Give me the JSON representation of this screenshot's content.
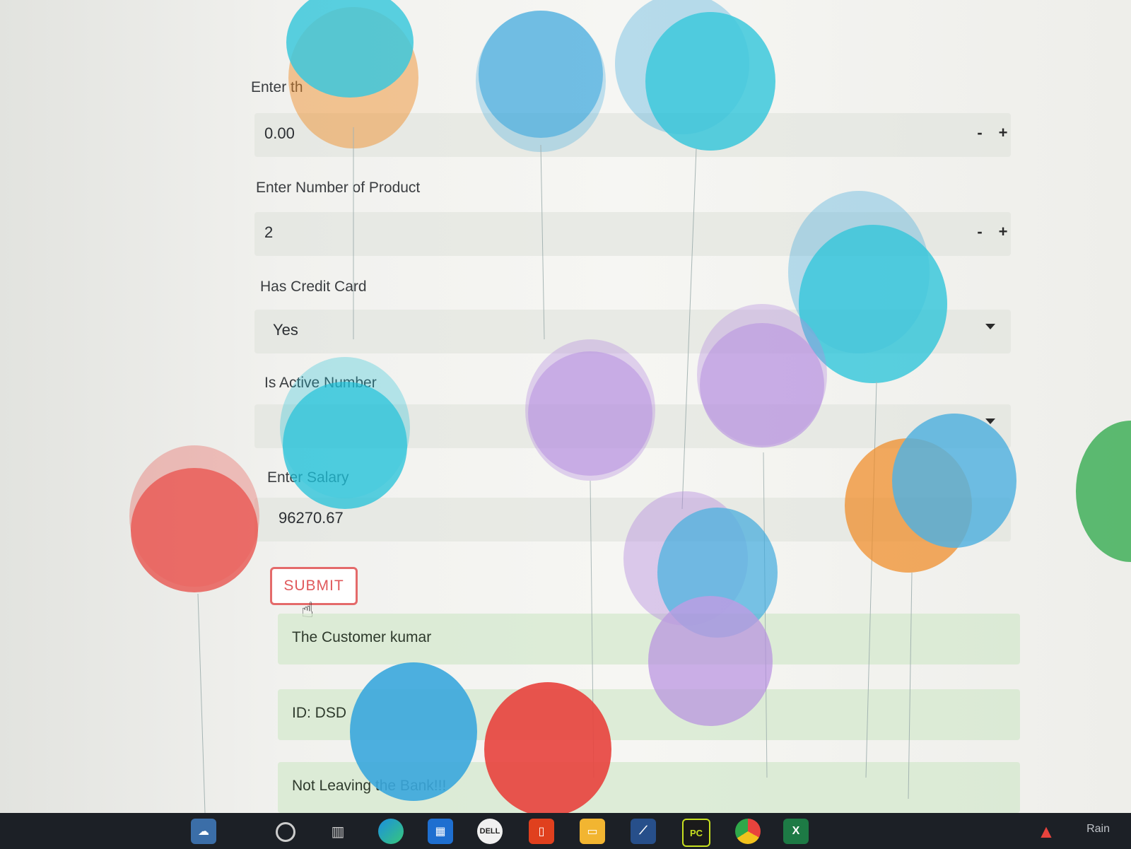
{
  "form": {
    "field1": {
      "label": "Enter th",
      "value": "0.00"
    },
    "field2": {
      "label": "Enter Number of Product",
      "value": "2"
    },
    "field3": {
      "label": "Has Credit Card",
      "value": "Yes"
    },
    "field4": {
      "label": "Is Active Number",
      "value": ""
    },
    "field5": {
      "label": "Enter Salary",
      "value": "96270.67"
    },
    "stepper_minus": "-",
    "stepper_plus": "+",
    "submit_label": "SUBMIT"
  },
  "results": {
    "line1": "The Customer kumar",
    "line2": "ID: DSD",
    "line3": "Not Leaving the Bank!!!"
  },
  "taskbar": {
    "apps": [
      "search-icon",
      "task-view-icon",
      "edge-icon",
      "store-icon",
      "dell-icon",
      "office-icon",
      "file-explorer-icon",
      "terminal-icon",
      "pycharm-icon",
      "chrome-icon",
      "excel-icon"
    ],
    "tray_weather": "Rain",
    "pycharm_label": "PC",
    "excel_label": "X"
  },
  "colors": {
    "balloon_blue": "#3aa7dd",
    "balloon_cyan": "#1bbfd8",
    "balloon_purple": "#b58ce0",
    "balloon_red": "#e8433d",
    "balloon_orange": "#f08a24",
    "balloon_green": "#2fa84a",
    "submit_red": "#e0595b"
  }
}
